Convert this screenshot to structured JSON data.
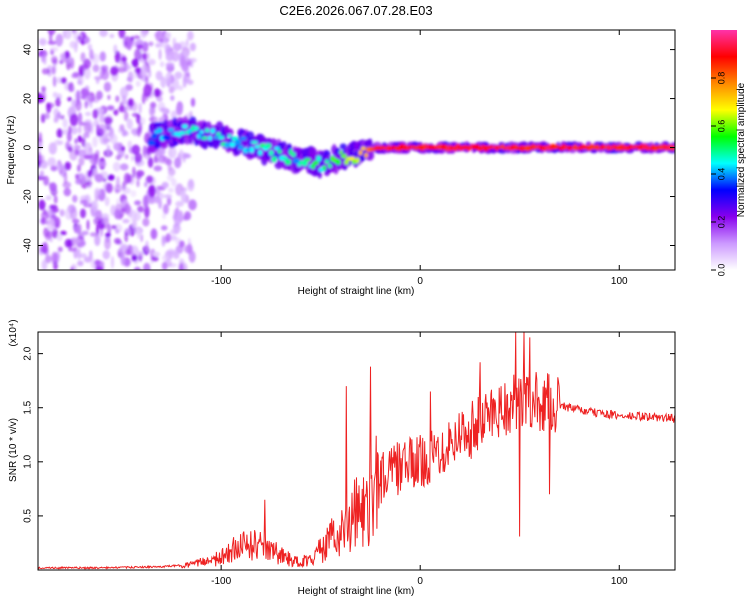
{
  "title": "C2E6.2026.067.07.28.E03",
  "chart_data": [
    {
      "type": "heatmap",
      "name": "spectrogram",
      "xlabel": "Height of straight line (km)",
      "ylabel": "Frequency (Hz)",
      "xlim": [
        -192,
        128
      ],
      "ylim": [
        -50,
        48
      ],
      "x_ticks": [
        -100,
        0,
        100
      ],
      "y_ticks": [
        40,
        20,
        0,
        -20,
        -40
      ],
      "x_tick_labels": [
        "-100",
        "0",
        "100"
      ],
      "y_tick_labels": [
        "40",
        "20",
        "0",
        "-20",
        "-40"
      ],
      "noise_region_x": [
        -192,
        -122
      ],
      "ridge": {
        "x": [
          -135,
          -120,
          -105,
          -90,
          -75,
          -60,
          -50,
          -40,
          -30,
          -22,
          -10,
          0,
          20,
          40,
          60,
          80,
          100,
          128
        ],
        "frequency": [
          4,
          7,
          5,
          2,
          -2,
          -5,
          -7,
          -4,
          -3,
          0,
          0,
          0,
          0,
          0,
          0,
          0,
          0,
          0
        ],
        "amplitude": [
          0.35,
          0.45,
          0.45,
          0.45,
          0.45,
          0.45,
          0.5,
          0.55,
          0.7,
          0.9,
          0.9,
          0.9,
          0.9,
          0.9,
          0.9,
          0.9,
          0.9,
          0.9
        ]
      },
      "colorbar": {
        "label": "Normalized spectral amplitude",
        "range": [
          0,
          1
        ],
        "ticks": [
          0.0,
          0.2,
          0.4,
          0.6,
          0.8
        ],
        "tick_labels": [
          "0.0",
          "0.2",
          "0.4",
          "0.6",
          "0.8"
        ],
        "colormap": [
          "#ffffff",
          "#cc99ff",
          "#8800ee",
          "#0000ff",
          "#00ffff",
          "#00ff00",
          "#ffff00",
          "#ff8800",
          "#ff0000",
          "#ff33aa"
        ]
      }
    },
    {
      "type": "line",
      "name": "snr",
      "xlabel": "Height of straight line (km)",
      "ylabel": "SNR (10 * v/v)",
      "multiplier_label": "(x10⁴)",
      "xlim": [
        -192,
        128
      ],
      "ylim": [
        0,
        2.2
      ],
      "x_ticks": [
        -100,
        0,
        100
      ],
      "y_ticks": [
        0.5,
        1.0,
        1.5,
        2.0
      ],
      "x_tick_labels": [
        "-100",
        "0",
        "100"
      ],
      "y_tick_labels": [
        "0.5",
        "1.0",
        "1.5",
        "2.0"
      ],
      "line_color": "#ee2222",
      "envelope_x": [
        -192,
        -160,
        -130,
        -115,
        -100,
        -92,
        -85,
        -78,
        -70,
        -65,
        -60,
        -55,
        -50,
        -45,
        -40,
        -35,
        -30,
        -25,
        -20,
        -15,
        -10,
        -5,
        0,
        5,
        10,
        15,
        20,
        25,
        30,
        35,
        40,
        45,
        50,
        55,
        60,
        65,
        70,
        75,
        80,
        85,
        90,
        95,
        100,
        110,
        120,
        128
      ],
      "envelope_y": [
        0.02,
        0.02,
        0.03,
        0.05,
        0.12,
        0.22,
        0.25,
        0.22,
        0.15,
        0.1,
        0.08,
        0.12,
        0.2,
        0.3,
        0.4,
        0.5,
        0.6,
        0.75,
        0.85,
        0.9,
        0.95,
        0.98,
        1.0,
        1.05,
        1.1,
        1.2,
        1.25,
        1.3,
        1.35,
        1.45,
        1.5,
        1.52,
        1.55,
        1.55,
        1.55,
        1.54,
        1.53,
        1.5,
        1.48,
        1.46,
        1.45,
        1.44,
        1.42,
        1.42,
        1.41,
        1.4
      ],
      "spikes": [
        [
          -78,
          0.65
        ],
        [
          -37,
          1.7
        ],
        [
          -25,
          1.88
        ],
        [
          5,
          1.65
        ],
        [
          30,
          1.92
        ],
        [
          48,
          2.2
        ],
        [
          52,
          2.2
        ],
        [
          55,
          2.15
        ],
        [
          50,
          0.31
        ],
        [
          65,
          2.15
        ],
        [
          65,
          0.7
        ]
      ]
    }
  ]
}
